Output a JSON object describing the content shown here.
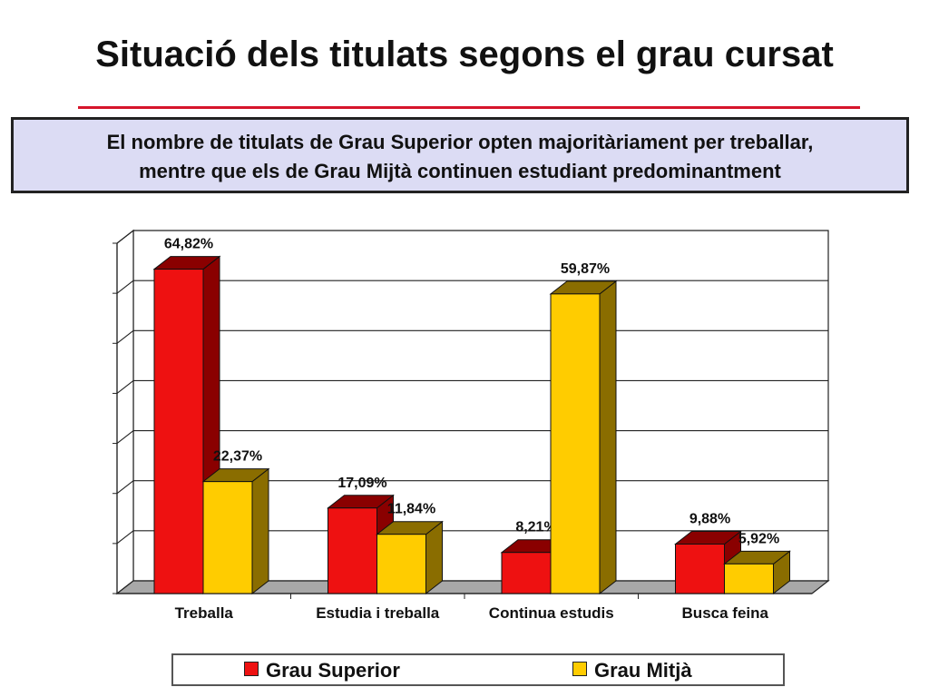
{
  "slide": {
    "title": "Situació dels titulats segons el grau cursat",
    "highlight": [
      "El nombre de titulats de Grau Superior opten majoritàriament per treballar,",
      "mentre que els de Grau Mijtà continuen estudiant predominantment"
    ]
  },
  "colors": {
    "title_rule": "#d6152b",
    "box_fill": "#dcdcf4",
    "grau_superior": "#ee1111",
    "grau_superior_side": "#8a0000",
    "grau_mitja": "#ffcc00",
    "grau_mitja_side": "#8a6d00"
  },
  "chart_data": {
    "type": "bar",
    "categories": [
      "Treballa",
      "Estudia i treballa",
      "Continua estudis",
      "Busca feina"
    ],
    "series": [
      {
        "name": "Grau Superior",
        "values": [
          64.82,
          17.09,
          8.21,
          9.88
        ],
        "labels": [
          "64,82%",
          "17,09%",
          "8,21%",
          "9,88%"
        ]
      },
      {
        "name": "Grau Mitjà",
        "values": [
          22.37,
          11.84,
          59.87,
          5.92
        ],
        "labels": [
          "22,37%",
          "11,84%",
          "59,87%",
          "5,92%"
        ]
      }
    ],
    "ylim": [
      0,
      70
    ],
    "grid": true,
    "style": "3d-clustered",
    "legend_placement": "bottom"
  },
  "legend": {
    "items": [
      "Grau Superior",
      "Grau Mitjà"
    ]
  }
}
